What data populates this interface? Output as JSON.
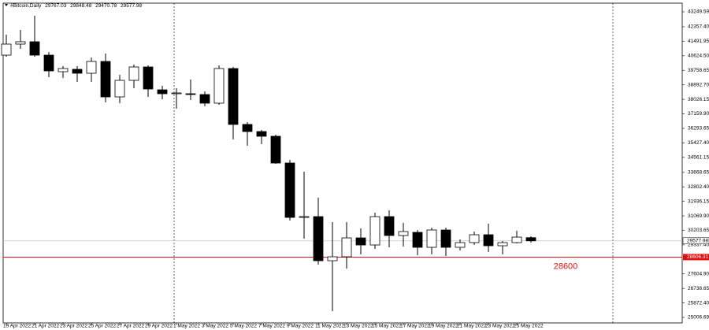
{
  "chart_data": {
    "type": "candlestick",
    "title": "#Bitcoin,Daily",
    "categories": [
      "19 Apr 2022",
      null,
      "21 Apr 2022",
      null,
      "23 Apr 2022",
      null,
      "25 Apr 2022",
      null,
      "27 Apr 2022",
      null,
      "29 Apr 2022",
      null,
      "1 May 2022",
      null,
      "3 May 2022",
      null,
      "5 May 2022",
      null,
      "7 May 2022",
      null,
      "9 May 2022",
      null,
      "11 May 2022",
      null,
      "13 May 2022",
      null,
      "15 May 2022",
      null,
      "17 May 2022",
      null,
      "19 May 2022",
      null,
      "21 May 2022",
      null,
      "23 May 2022",
      null,
      "25 May 2022",
      null
    ],
    "open": [
      40663,
      41322,
      41463,
      40663,
      39676,
      39817,
      39582,
      40287,
      38171,
      39159,
      39958,
      38594,
      38359,
      38359,
      38312,
      37795,
      39864,
      36526,
      36102,
      35820,
      34222,
      30977,
      31024,
      28391,
      28626,
      29754,
      29331,
      31024,
      29895,
      30084,
      29190,
      30225,
      29190,
      29472,
      29942,
      29284,
      29472,
      29767.03
    ],
    "high": [
      41886,
      42168,
      43014,
      40851,
      40005,
      40005,
      40522,
      40757,
      39488,
      40099,
      40052,
      38829,
      38688,
      39206,
      38500,
      40052,
      39958,
      36667,
      36197,
      35914,
      34410,
      33704,
      32153,
      30695,
      30695,
      30319,
      31259,
      31400,
      30648,
      30225,
      30366,
      30366,
      29660,
      30131,
      30601,
      29566,
      30178,
      29848.48
    ],
    "low": [
      40569,
      41040,
      40569,
      39347,
      39300,
      39065,
      39065,
      37842,
      37795,
      38688,
      38171,
      38030,
      37466,
      37983,
      37607,
      37701,
      35632,
      35256,
      35350,
      34175,
      30789,
      29707,
      28156,
      25382,
      27921,
      28767,
      29096,
      29190,
      29237,
      28720,
      28767,
      28673,
      29002,
      29331,
      28908,
      28767,
      29425,
      29470.78
    ],
    "close": [
      41322,
      41463,
      40663,
      39723,
      39864,
      39582,
      40287,
      38171,
      39159,
      39958,
      38641,
      38359,
      38406,
      38312,
      37795,
      39864,
      36526,
      36102,
      35820,
      34222,
      30977,
      31024,
      28391,
      28626,
      29754,
      29331,
      31024,
      29895,
      30131,
      29190,
      30225,
      29190,
      29472,
      29942,
      29284,
      29472,
      29801,
      29577.98
    ],
    "up_color": "#ffffff",
    "down_color": "#000000",
    "ylim": [
      24677.56,
      43954.86
    ],
    "yticks": [
      43249.59,
      {
        "value": 42357.4,
        "label": "42357.40"
      },
      41491.95,
      {
        "value": 40624.5,
        "label": "40624.50"
      },
      39758.65,
      {
        "value": 38892.7,
        "label": "38892.70"
      },
      38026.15,
      {
        "value": 37159.9,
        "label": "37159.90"
      },
      36293.65,
      {
        "value": 35427.4,
        "label": "35427.40"
      },
      34561.15,
      33668.65,
      {
        "value": 32802.4,
        "label": "32802.40"
      },
      31936.15,
      {
        "value": 31069.9,
        "label": "31069.90"
      },
      30203.65,
      {
        "value": 29337.4,
        "label": "29337.40"
      },
      {
        "value": 27604.9,
        "label": "27604.90"
      },
      26738.65,
      {
        "value": 25872.4,
        "label": "25872.40"
      },
      25006.69
    ],
    "level": {
      "value": 28606.31,
      "note": "28600",
      "color": "#e01010"
    }
  }
}
